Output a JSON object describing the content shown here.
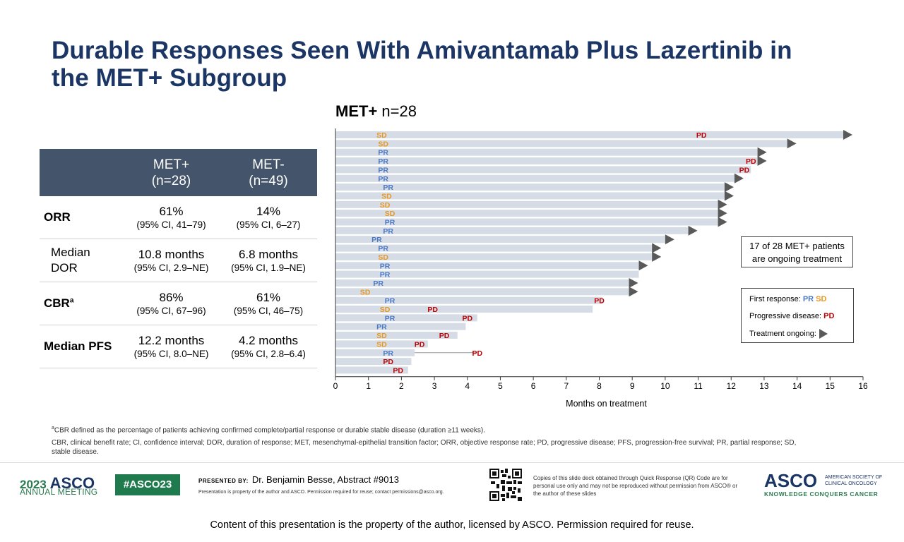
{
  "slide": {
    "title_line1": "Durable Responses Seen With Amivantamab Plus Lazertinib in",
    "title_line2": "the MET+ Subgroup"
  },
  "table": {
    "col1_line1": "MET+",
    "col1_line2": "(n=28)",
    "col2_line1": "MET-",
    "col2_line2": "(n=49)",
    "rows": [
      {
        "label": "ORR",
        "a_value": "61%",
        "a_ci": "(95% CI, 41–79)",
        "b_value": "14%",
        "b_ci": "(95% CI, 6–27)"
      },
      {
        "label_line1": "Median",
        "label_line2": "DOR",
        "a_value": "10.8 months",
        "a_ci": "(95% CI, 2.9–NE)",
        "b_value": "6.8 months",
        "b_ci": "(95% CI, 1.9–NE)"
      },
      {
        "label": "CBR",
        "label_sup": "a",
        "a_value": "86%",
        "a_ci": "(95% CI, 67–96)",
        "b_value": "61%",
        "b_ci": "(95% CI, 46–75)"
      },
      {
        "label": "Median PFS",
        "a_value": "12.2 months",
        "a_ci": "(95% CI, 8.0–NE)",
        "b_value": "4.2 months",
        "b_ci": "(95% CI, 2.8–6.4)"
      }
    ]
  },
  "chart_data": {
    "type": "swimmer",
    "title_bold": "MET+",
    "title_rest": " n=28",
    "xlabel": "Months on treatment",
    "xlim": [
      0,
      16
    ],
    "xticks": [
      0,
      1,
      2,
      3,
      4,
      5,
      6,
      7,
      8,
      9,
      10,
      11,
      12,
      13,
      14,
      15,
      16
    ],
    "patients": [
      {
        "duration": 15.4,
        "ongoing": true,
        "response": "SD",
        "response_time": 1.4,
        "pd": 11.1
      },
      {
        "duration": 13.7,
        "ongoing": true,
        "response": "SD",
        "response_time": 1.45,
        "pd": null
      },
      {
        "duration": 12.8,
        "ongoing": true,
        "response": "PR",
        "response_time": 1.45,
        "pd": null
      },
      {
        "duration": 12.8,
        "ongoing": true,
        "response": "PR",
        "response_time": 1.45,
        "pd": 12.6
      },
      {
        "duration": 12.6,
        "ongoing": false,
        "response": "PR",
        "response_time": 1.45,
        "pd": 12.4
      },
      {
        "duration": 12.1,
        "ongoing": true,
        "response": "PR",
        "response_time": 1.45,
        "pd": null
      },
      {
        "duration": 11.8,
        "ongoing": true,
        "response": "PR",
        "response_time": 1.6,
        "pd": null
      },
      {
        "duration": 11.8,
        "ongoing": true,
        "response": "SD",
        "response_time": 1.55,
        "pd": null
      },
      {
        "duration": 11.6,
        "ongoing": true,
        "response": "SD",
        "response_time": 1.5,
        "pd": null
      },
      {
        "duration": 11.6,
        "ongoing": true,
        "response": "SD",
        "response_time": 1.65,
        "pd": null
      },
      {
        "duration": 11.6,
        "ongoing": true,
        "response": "PR",
        "response_time": 1.65,
        "pd": null
      },
      {
        "duration": 10.7,
        "ongoing": true,
        "response": "PR",
        "response_time": 1.6,
        "pd": null
      },
      {
        "duration": 10.0,
        "ongoing": true,
        "response": "PR",
        "response_time": 1.25,
        "pd": null
      },
      {
        "duration": 9.6,
        "ongoing": true,
        "response": "PR",
        "response_time": 1.45,
        "pd": null
      },
      {
        "duration": 9.6,
        "ongoing": true,
        "response": "SD",
        "response_time": 1.45,
        "pd": null
      },
      {
        "duration": 9.2,
        "ongoing": true,
        "response": "PR",
        "response_time": 1.5,
        "pd": null
      },
      {
        "duration": 9.2,
        "ongoing": false,
        "response": "PR",
        "response_time": 1.5,
        "pd": null
      },
      {
        "duration": 8.9,
        "ongoing": true,
        "response": "PR",
        "response_time": 1.3,
        "pd": null
      },
      {
        "duration": 8.9,
        "ongoing": true,
        "response": "SD",
        "response_time": 0.9,
        "pd": null
      },
      {
        "duration": 8.1,
        "ongoing": false,
        "response": "PR",
        "response_time": 1.65,
        "pd": 8.0
      },
      {
        "duration": 7.8,
        "ongoing": false,
        "response": "SD",
        "response_time": 1.5,
        "pd": 2.95
      },
      {
        "duration": 4.3,
        "ongoing": false,
        "response": "PR",
        "response_time": 1.65,
        "pd": 4.0
      },
      {
        "duration": 3.95,
        "ongoing": false,
        "response": "PR",
        "response_time": 1.4,
        "pd": null
      },
      {
        "duration": 3.7,
        "ongoing": false,
        "response": "SD",
        "response_time": 1.4,
        "pd": 3.3
      },
      {
        "duration": 2.8,
        "ongoing": false,
        "response": "SD",
        "response_time": 1.4,
        "pd": 2.55
      },
      {
        "duration": 2.4,
        "ongoing": false,
        "response": "PR",
        "response_time": 1.6,
        "pd": 4.3
      },
      {
        "duration": 2.3,
        "ongoing": false,
        "response": null,
        "response_time": null,
        "pd": 1.6
      },
      {
        "duration": 2.2,
        "ongoing": false,
        "response": null,
        "response_time": null,
        "pd": 1.9
      }
    ]
  },
  "callout": {
    "line1": "17 of 28 MET+ patients",
    "line2": "are ongoing treatment"
  },
  "legend": {
    "first_response": "First response:",
    "pr": "PR",
    "sd": "SD",
    "progressive": "Progressive disease:",
    "pd": "PD",
    "ongoing": "Treatment ongoing:"
  },
  "colors": {
    "pr": "#4a78c4",
    "sd": "#e8971f",
    "pd": "#c00000",
    "bar": "#d6dce5",
    "arrow": "#595959"
  },
  "footnotes": {
    "line1_sup": "a",
    "line1": "CBR defined as the percentage of patients achieving confirmed complete/partial response or durable stable disease (duration ≥11 weeks).",
    "line2": "CBR, clinical benefit rate; CI, confidence interval; DOR, duration of response; MET, mesenchymal-epithelial transition factor; ORR, objective response rate; PD, progressive disease; PFS, progression-free survival; PR, partial response; SD, stable disease."
  },
  "footer": {
    "year": "2023",
    "asco": "ASCO",
    "annual": "ANNUAL MEETING",
    "hashtag": "#ASCO23",
    "presented_label": "PRESENTED BY:",
    "presenter": "Dr. Benjamin Besse, Abstract #9013",
    "permission": "Presentation is property of the author and ASCO. Permission required for reuse; contact permissions@asco.org.",
    "qr_note": "Copies of this slide deck obtained through Quick Response (QR) Code are for personal use only and may not be reproduced without permission from ASCO® or the author of these slides",
    "logo": "ASCO",
    "society": "AMERICAN SOCIETY OF CLINICAL ONCOLOGY",
    "tagline": "KNOWLEDGE CONQUERS CANCER",
    "bottom": "Content of this presentation is the property of the author, licensed by ASCO. Permission required for reuse."
  }
}
